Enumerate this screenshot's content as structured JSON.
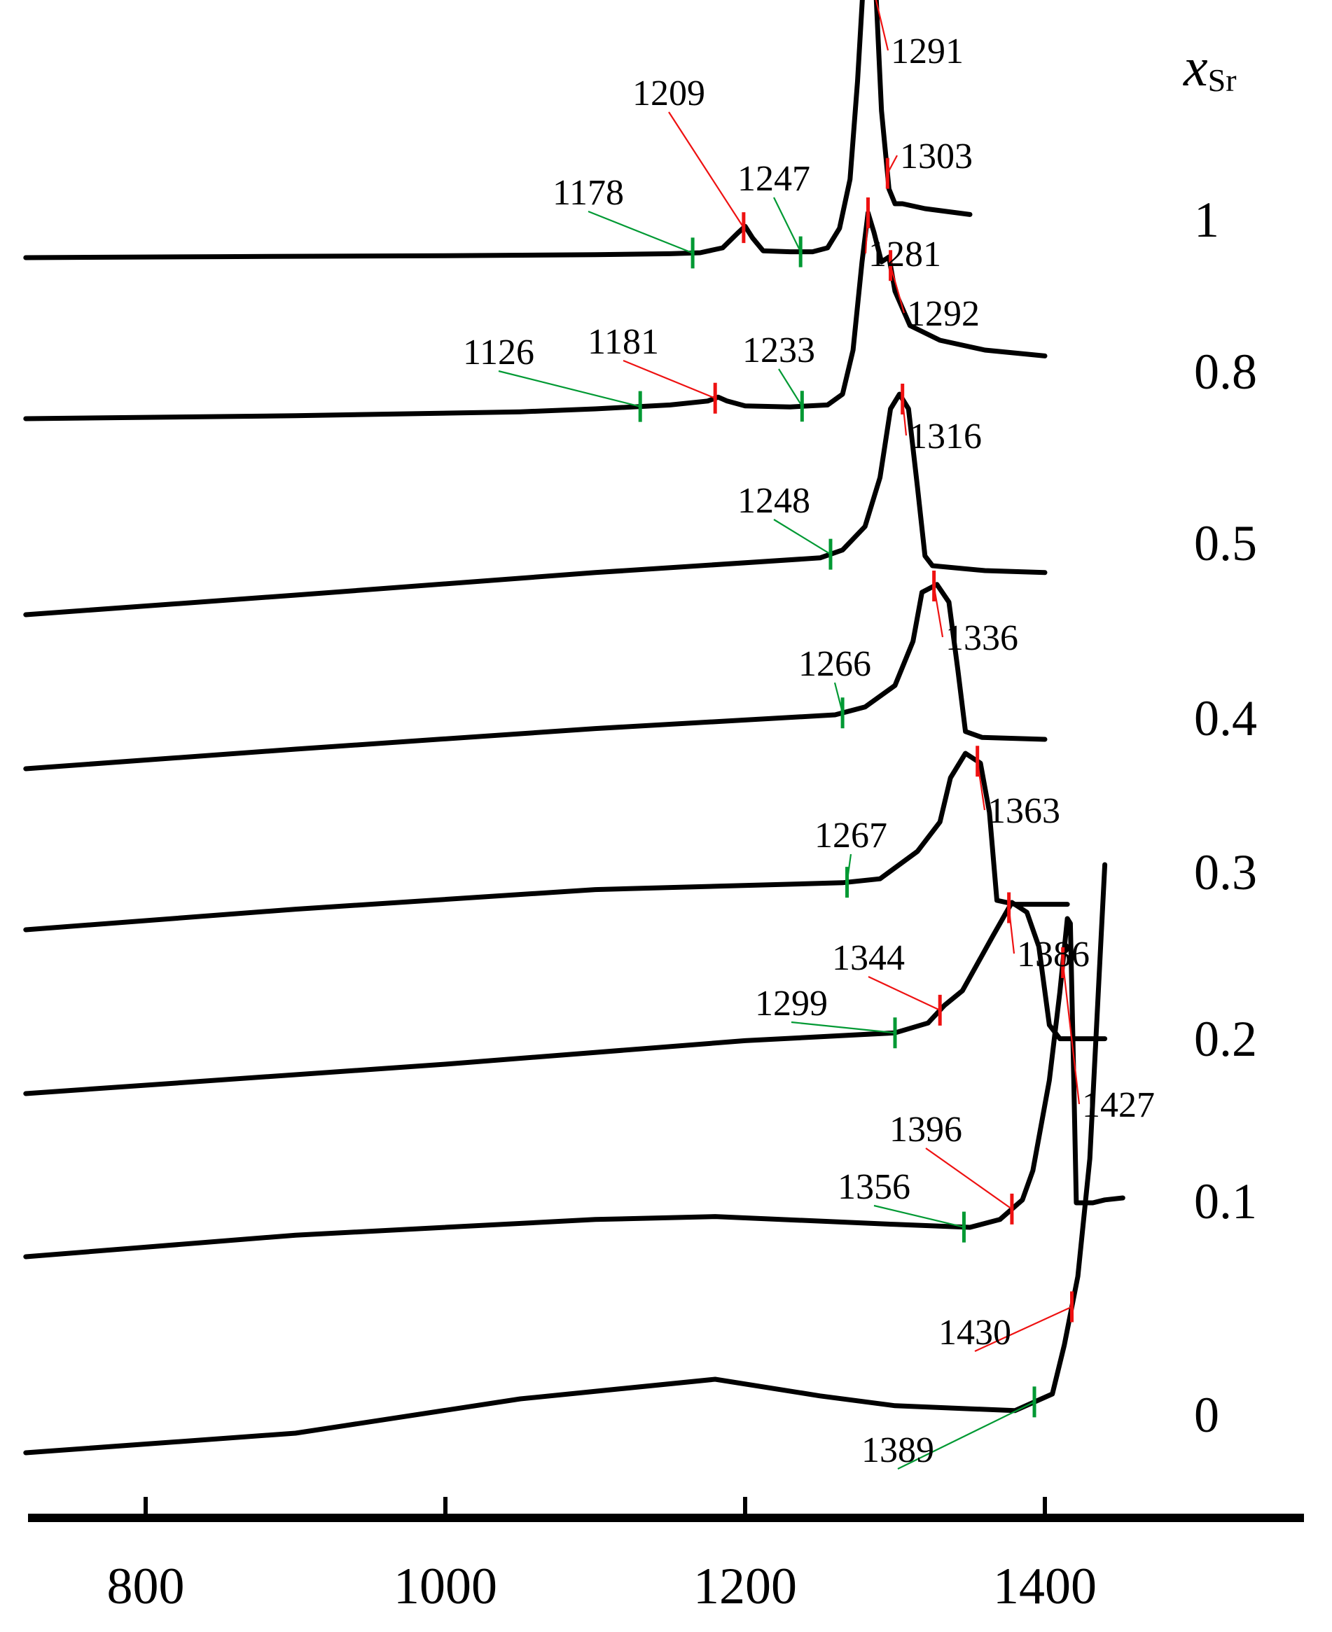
{
  "chart_data": {
    "type": "line",
    "title": "",
    "xlabel": "",
    "ylabel": "",
    "xlim": [
      720,
      1600
    ],
    "x_ticks": [
      800,
      1000,
      1200,
      1400
    ],
    "grid": false,
    "legend_title": {
      "main": "x",
      "sub": "Sr"
    },
    "colors": {
      "onset": "#009933",
      "peak": "#ee1111",
      "curve": "#000000"
    },
    "series": [
      {
        "name": "1",
        "points": [
          [
            720,
            0.0
          ],
          [
            850,
            0.01
          ],
          [
            1000,
            0.02
          ],
          [
            1100,
            0.03
          ],
          [
            1150,
            0.04
          ],
          [
            1170,
            0.05
          ],
          [
            1185,
            0.1
          ],
          [
            1195,
            0.25
          ],
          [
            1200,
            0.32
          ],
          [
            1205,
            0.2
          ],
          [
            1212,
            0.07
          ],
          [
            1230,
            0.06
          ],
          [
            1245,
            0.06
          ],
          [
            1255,
            0.1
          ],
          [
            1263,
            0.3
          ],
          [
            1270,
            0.8
          ],
          [
            1275,
            1.8
          ],
          [
            1280,
            3.1
          ],
          [
            1284,
            3.3
          ],
          [
            1287,
            2.8
          ],
          [
            1291,
            1.5
          ],
          [
            1296,
            0.7
          ],
          [
            1300,
            0.55
          ],
          [
            1305,
            0.55
          ],
          [
            1320,
            0.5
          ],
          [
            1350,
            0.44
          ]
        ],
        "onset": [
          1165,
          1237
        ],
        "peak": [
          1199,
          1280,
          1295
        ]
      },
      {
        "name": "0.8",
        "points": [
          [
            720,
            0.0
          ],
          [
            900,
            0.03
          ],
          [
            1050,
            0.07
          ],
          [
            1100,
            0.1
          ],
          [
            1150,
            0.14
          ],
          [
            1175,
            0.18
          ],
          [
            1182,
            0.22
          ],
          [
            1188,
            0.18
          ],
          [
            1200,
            0.13
          ],
          [
            1230,
            0.12
          ],
          [
            1255,
            0.14
          ],
          [
            1265,
            0.25
          ],
          [
            1272,
            0.7
          ],
          [
            1278,
            1.6
          ],
          [
            1282,
            2.1
          ],
          [
            1286,
            1.9
          ],
          [
            1291,
            1.6
          ],
          [
            1296,
            1.65
          ],
          [
            1300,
            1.3
          ],
          [
            1310,
            0.95
          ],
          [
            1330,
            0.8
          ],
          [
            1360,
            0.7
          ],
          [
            1400,
            0.64
          ]
        ],
        "onset": [
          1130,
          1238
        ],
        "peak": [
          1180,
          1282,
          1297
        ]
      },
      {
        "name": "0.5",
        "points": [
          [
            720,
            0.0
          ],
          [
            900,
            0.2
          ],
          [
            1100,
            0.43
          ],
          [
            1250,
            0.58
          ],
          [
            1265,
            0.66
          ],
          [
            1280,
            0.9
          ],
          [
            1290,
            1.4
          ],
          [
            1297,
            2.1
          ],
          [
            1303,
            2.25
          ],
          [
            1309,
            2.1
          ],
          [
            1315,
            1.3
          ],
          [
            1320,
            0.6
          ],
          [
            1325,
            0.5
          ],
          [
            1360,
            0.45
          ],
          [
            1400,
            0.43
          ]
        ],
        "onset": [
          1257
        ],
        "peak": [
          1305
        ]
      },
      {
        "name": "0.4",
        "points": [
          [
            720,
            0.0
          ],
          [
            900,
            0.2
          ],
          [
            1100,
            0.41
          ],
          [
            1260,
            0.55
          ],
          [
            1280,
            0.63
          ],
          [
            1300,
            0.85
          ],
          [
            1312,
            1.3
          ],
          [
            1318,
            1.8
          ],
          [
            1328,
            1.88
          ],
          [
            1336,
            1.7
          ],
          [
            1342,
            1.0
          ],
          [
            1347,
            0.38
          ],
          [
            1358,
            0.32
          ],
          [
            1400,
            0.3
          ]
        ],
        "onset": [
          1265
        ],
        "peak": [
          1326
        ]
      },
      {
        "name": "0.3",
        "points": [
          [
            720,
            0.0
          ],
          [
            900,
            0.21
          ],
          [
            1100,
            0.41
          ],
          [
            1265,
            0.48
          ],
          [
            1290,
            0.52
          ],
          [
            1315,
            0.8
          ],
          [
            1330,
            1.1
          ],
          [
            1337,
            1.55
          ],
          [
            1347,
            1.8
          ],
          [
            1357,
            1.7
          ],
          [
            1363,
            1.2
          ],
          [
            1368,
            0.3
          ],
          [
            1380,
            0.26
          ],
          [
            1415,
            0.26
          ]
        ],
        "onset": [
          1268
        ],
        "peak": [
          1355
        ]
      },
      {
        "name": "0.2",
        "points": [
          [
            720,
            0.0
          ],
          [
            1000,
            0.3
          ],
          [
            1200,
            0.54
          ],
          [
            1300,
            0.62
          ],
          [
            1322,
            0.72
          ],
          [
            1333,
            0.9
          ],
          [
            1345,
            1.05
          ],
          [
            1365,
            1.6
          ],
          [
            1378,
            1.95
          ],
          [
            1388,
            1.85
          ],
          [
            1396,
            1.5
          ],
          [
            1403,
            0.7
          ],
          [
            1410,
            0.56
          ],
          [
            1440,
            0.56
          ]
        ],
        "onset": [
          1300
        ],
        "peak": [
          1330,
          1376
        ]
      },
      {
        "name": "0.1",
        "points": [
          [
            720,
            0.0
          ],
          [
            900,
            0.22
          ],
          [
            1100,
            0.38
          ],
          [
            1180,
            0.41
          ],
          [
            1300,
            0.33
          ],
          [
            1350,
            0.3
          ],
          [
            1370,
            0.38
          ],
          [
            1385,
            0.58
          ],
          [
            1392,
            0.88
          ],
          [
            1403,
            1.8
          ],
          [
            1410,
            2.7
          ],
          [
            1415,
            3.45
          ],
          [
            1417,
            3.4
          ],
          [
            1419,
            2.0
          ],
          [
            1421,
            0.55
          ],
          [
            1432,
            0.55
          ],
          [
            1440,
            0.58
          ],
          [
            1452,
            0.6
          ]
        ],
        "onset": [
          1346
        ],
        "peak": [
          1378,
          1412
        ]
      },
      {
        "name": "0",
        "points": [
          [
            720,
            0.0
          ],
          [
            900,
            0.2
          ],
          [
            1050,
            0.55
          ],
          [
            1180,
            0.75
          ],
          [
            1250,
            0.58
          ],
          [
            1300,
            0.48
          ],
          [
            1380,
            0.43
          ],
          [
            1405,
            0.6
          ],
          [
            1413,
            1.1
          ],
          [
            1422,
            1.8
          ],
          [
            1430,
            3.0
          ],
          [
            1436,
            4.8
          ],
          [
            1440,
            6.0
          ]
        ],
        "onset": [
          1393
        ],
        "peak": [
          1418
        ]
      }
    ],
    "annotations": [
      {
        "text": "1291",
        "series": "1"
      },
      {
        "text": "1209",
        "series": "1"
      },
      {
        "text": "1247",
        "series": "1"
      },
      {
        "text": "1178",
        "series": "1"
      },
      {
        "text": "1303",
        "series": "1"
      },
      {
        "text": "1281",
        "series": "0.8"
      },
      {
        "text": "1292",
        "series": "0.8"
      },
      {
        "text": "1126",
        "series": "0.8"
      },
      {
        "text": "1181",
        "series": "0.8"
      },
      {
        "text": "1233",
        "series": "0.8"
      },
      {
        "text": "1316",
        "series": "0.5"
      },
      {
        "text": "1248",
        "series": "0.5"
      },
      {
        "text": "1336",
        "series": "0.4"
      },
      {
        "text": "1266",
        "series": "0.4"
      },
      {
        "text": "1363",
        "series": "0.3"
      },
      {
        "text": "1267",
        "series": "0.3"
      },
      {
        "text": "1386",
        "series": "0.2"
      },
      {
        "text": "1344",
        "series": "0.2"
      },
      {
        "text": "1299",
        "series": "0.2"
      },
      {
        "text": "1427",
        "series": "0.1"
      },
      {
        "text": "1396",
        "series": "0.1"
      },
      {
        "text": "1356",
        "series": "0.1"
      },
      {
        "text": "1430",
        "series": "0"
      },
      {
        "text": "1389",
        "series": "0"
      }
    ]
  }
}
